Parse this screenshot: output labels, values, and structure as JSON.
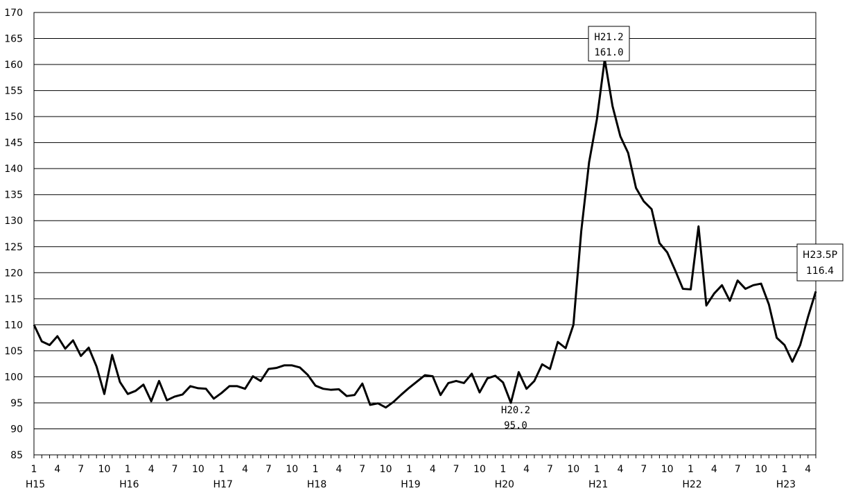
{
  "chart_data": {
    "type": "line",
    "title": "",
    "xlabel": "",
    "ylabel": "",
    "ylim": [
      85,
      170
    ],
    "y_ticks": [
      "85",
      "90",
      "95",
      "100",
      "105",
      "110",
      "115",
      "120",
      "125",
      "130",
      "135",
      "140",
      "145",
      "150",
      "155",
      "160",
      "165",
      "170"
    ],
    "grid": "horizontal",
    "x_tick_labels": [
      "1",
      "4",
      "7",
      "10",
      "1",
      "4",
      "7",
      "10",
      "1",
      "4",
      "7",
      "10",
      "1",
      "4",
      "7",
      "10",
      "1",
      "4",
      "7",
      "10",
      "1",
      "4",
      "7",
      "10",
      "1",
      "4",
      "7",
      "10",
      "1",
      "4",
      "7",
      "10",
      "1",
      "4"
    ],
    "year_labels": [
      "H15",
      "H16",
      "H17",
      "H18",
      "H19",
      "H20",
      "H21",
      "H22",
      "H23"
    ],
    "series": [
      {
        "values": [
          110.0,
          106.8,
          106.1,
          107.8,
          105.4,
          107.0,
          104.0,
          105.6,
          102.0,
          96.7,
          104.2,
          99.0,
          96.7,
          97.3,
          98.5,
          95.3,
          99.2,
          95.5,
          96.2,
          96.6,
          98.2,
          97.8,
          97.7,
          95.8,
          96.9,
          98.2,
          98.2,
          97.7,
          100.1,
          99.2,
          101.5,
          101.7,
          102.2,
          102.2,
          101.8,
          100.4,
          98.3,
          97.7,
          97.5,
          97.6,
          96.3,
          96.5,
          98.7,
          94.6,
          94.9,
          94.1,
          95.2,
          96.6,
          97.9,
          99.1,
          100.3,
          100.1,
          96.5,
          98.8,
          99.2,
          98.8,
          100.6,
          97.0,
          99.7,
          100.2,
          98.9,
          95.0,
          100.9,
          97.7,
          99.2,
          102.4,
          101.5,
          106.7,
          105.5,
          110.0,
          128.0,
          141.2,
          149.5,
          161.0,
          152.0,
          146.2,
          143.0,
          136.3,
          133.7,
          132.2,
          125.7,
          123.9,
          120.5,
          116.9,
          116.8,
          128.9,
          113.7,
          116.0,
          117.6,
          114.6,
          118.5,
          116.9,
          117.6,
          117.9,
          113.9,
          107.5,
          106.1,
          102.9,
          106.1,
          111.5,
          116.4
        ]
      }
    ],
    "annotations": [
      {
        "line1": "H21.2",
        "line2": "161.0"
      },
      {
        "line1": "H20.2",
        "line2": "95.0"
      },
      {
        "line1": "H23.5P",
        "line2": "116.4"
      }
    ]
  }
}
